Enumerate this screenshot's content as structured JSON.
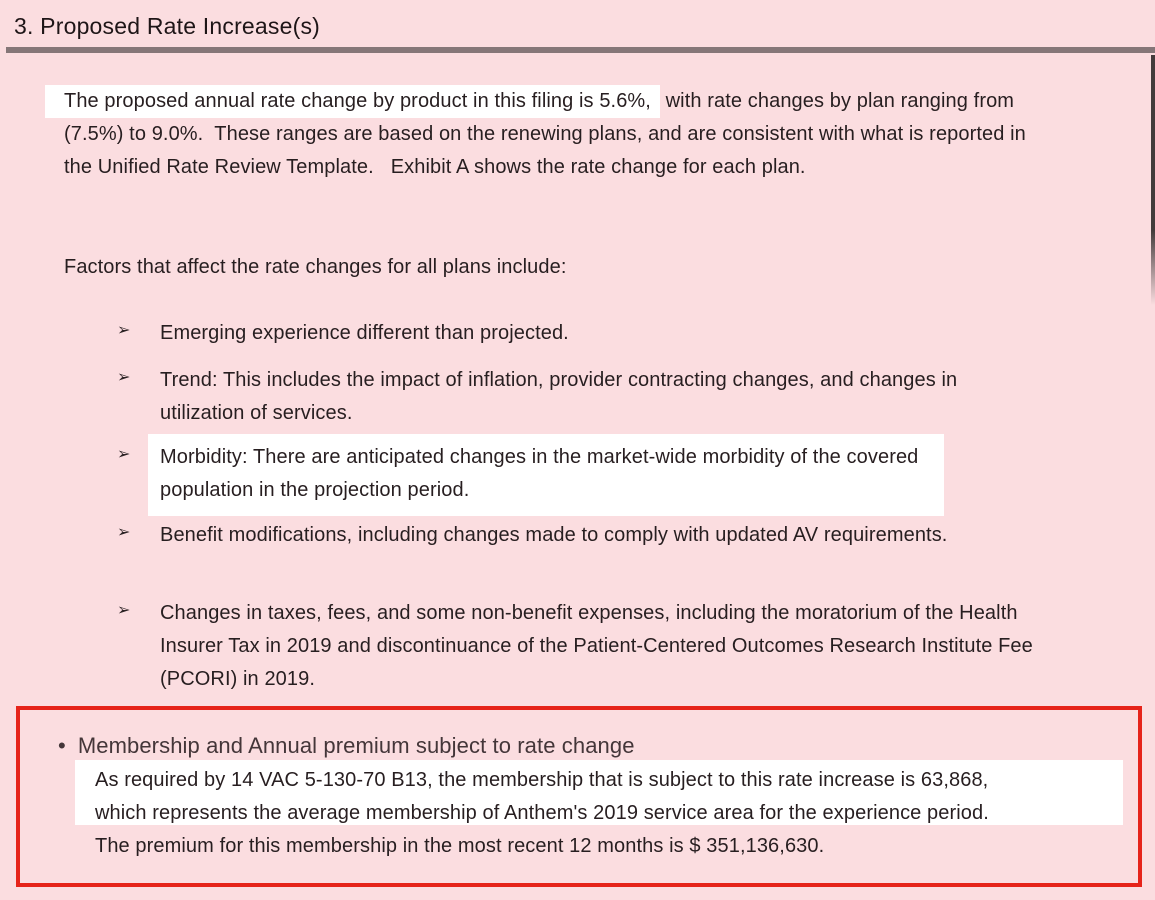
{
  "document": {
    "heading": "3. Proposed Rate Increase(s)",
    "intro": {
      "line1_highlighted": "The proposed annual rate change by product in this filing is 5.6%,",
      "line1_rest": " with rate changes by plan ranging from",
      "line2": "(7.5%) to 9.0%.  These ranges are based on the renewing plans, and are consistent with what is reported in",
      "line3": "the Unified Rate Review Template.   Exhibit A shows the rate change for each plan."
    },
    "factors_intro": "Factors that affect the rate changes for all plans include:",
    "bullet_marker": "➢",
    "bullets": [
      {
        "highlighted": false,
        "lines": [
          "Emerging experience different than projected."
        ]
      },
      {
        "highlighted": false,
        "lines": [
          "Trend: This includes the impact of inflation, provider contracting changes, and changes in",
          "utilization of services."
        ]
      },
      {
        "highlighted": true,
        "lines": [
          "Morbidity: There are anticipated changes in the market-wide morbidity of the covered",
          "population in the projection period."
        ]
      },
      {
        "highlighted": false,
        "lines": [
          "Benefit modifications, including changes made to comply with updated AV requirements."
        ]
      },
      {
        "highlighted": false,
        "lines": [
          "Changes in taxes, fees, and some non-benefit expenses, including the moratorium of the Health",
          "Insurer Tax in 2019 and discontinuance of the Patient-Centered Outcomes Research Institute Fee",
          "(PCORI) in 2019."
        ]
      }
    ],
    "membership_box": {
      "bullet_marker": "•",
      "title": "Membership and Annual premium subject to rate change",
      "line1": "As required by 14 VAC 5-130-70 B13, the membership that is subject to this rate increase is 63,868,",
      "line2": "which represents the average membership of Anthem's 2019 service area for the experience period.",
      "line3": "The premium for this membership in the most recent 12 months is $ 351,136,630."
    },
    "colors": {
      "page_background": "#fbdde0",
      "highlight": "#ffffff",
      "heading_rule": "#857678",
      "annotation_border": "#e6231a",
      "body_text": "#271e20"
    }
  }
}
